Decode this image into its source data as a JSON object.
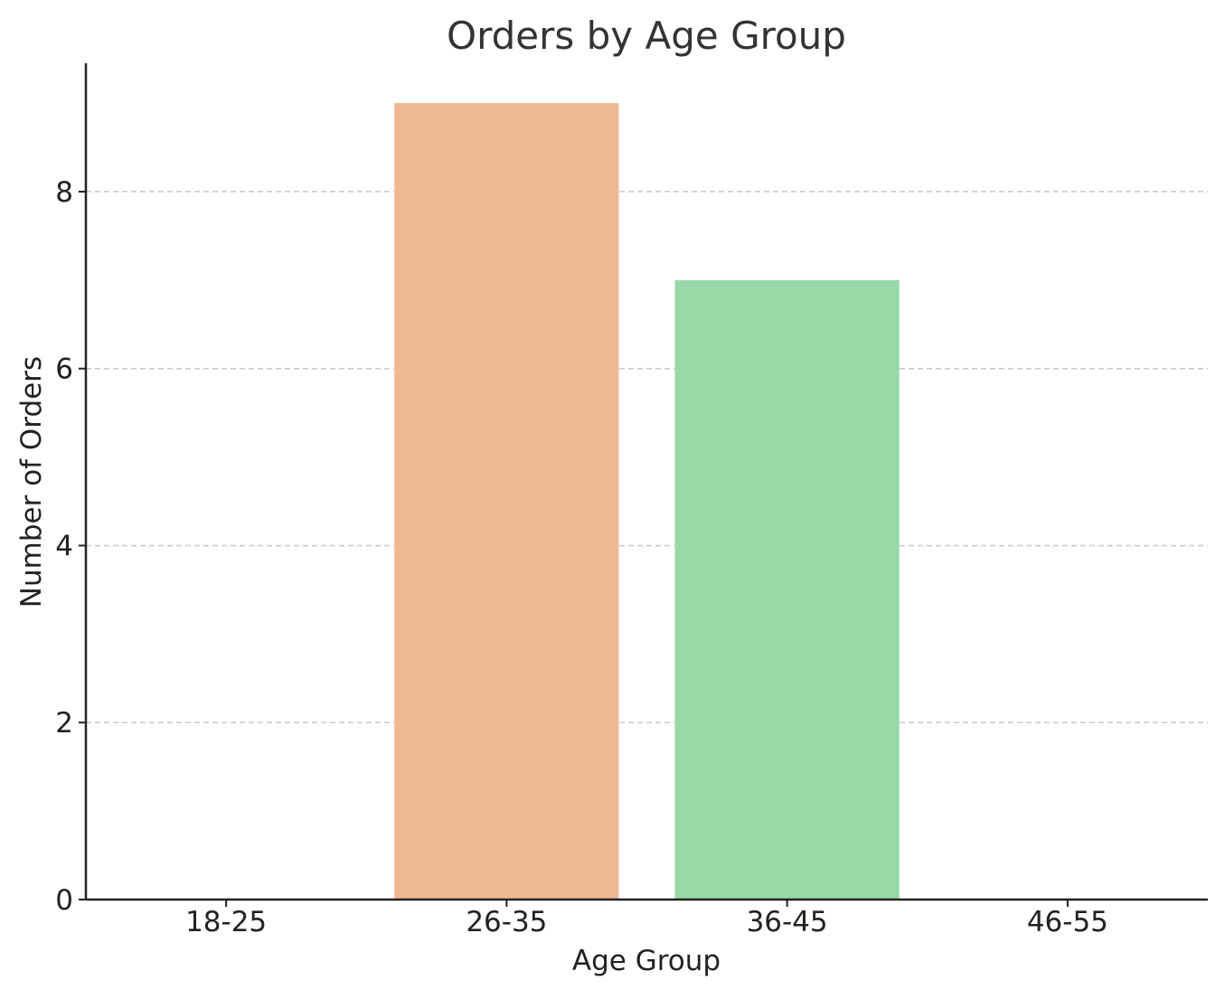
{
  "chart_data": {
    "type": "bar",
    "title": "Orders by Age Group",
    "xlabel": "Age Group",
    "ylabel": "Number of Orders",
    "categories": [
      "18-25",
      "26-35",
      "36-45",
      "46-55"
    ],
    "values": [
      0,
      9,
      7,
      0
    ],
    "colors": [
      "#a1c9f4",
      "#f0b893",
      "#98d8a7",
      "#ff9f9b"
    ],
    "ylim": [
      0,
      9.45
    ],
    "yticks": [
      0,
      2,
      4,
      6,
      8
    ],
    "grid": "y-dashed",
    "legend": "none"
  }
}
